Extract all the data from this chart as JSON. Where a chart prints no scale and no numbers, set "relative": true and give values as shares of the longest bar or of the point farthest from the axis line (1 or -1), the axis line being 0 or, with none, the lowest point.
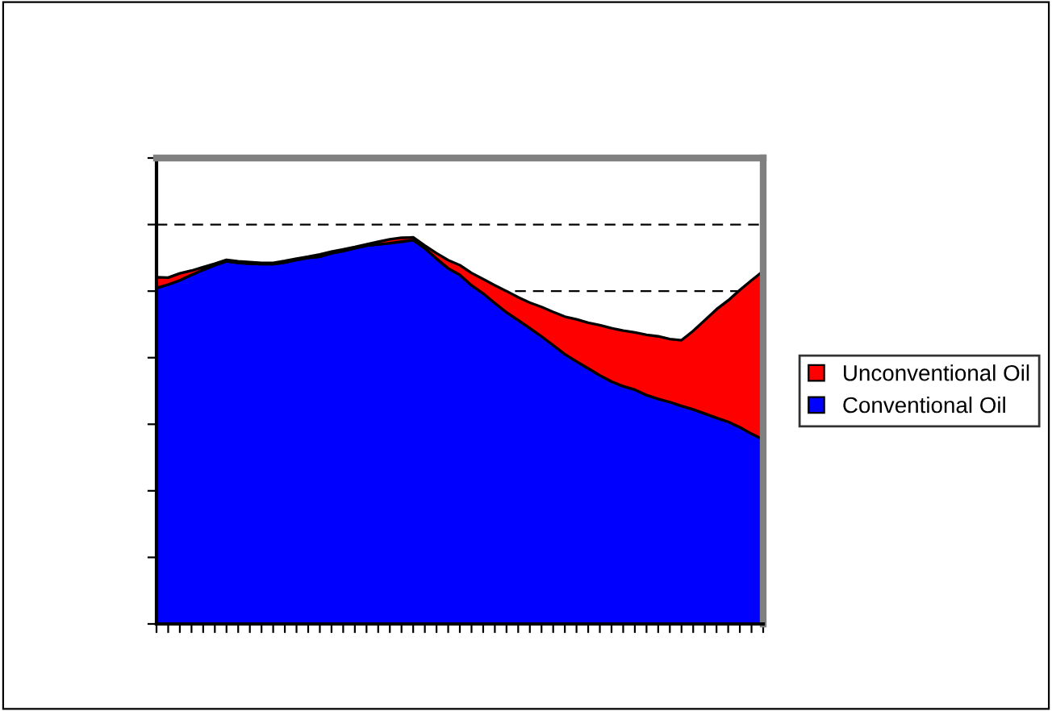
{
  "chart_data": {
    "type": "area",
    "stacked": true,
    "relative": true,
    "categories": [
      null,
      null,
      null,
      null,
      null,
      null,
      null,
      null,
      null,
      null,
      null,
      null,
      null,
      null,
      null,
      null,
      null,
      null,
      null,
      null,
      null,
      null,
      null,
      null,
      null,
      null,
      null,
      null,
      null,
      null,
      null,
      null,
      null,
      null,
      null,
      null,
      null,
      null,
      null,
      null,
      null,
      null,
      null,
      null,
      null,
      null,
      null,
      null,
      null,
      null,
      null,
      null,
      null
    ],
    "series": [
      {
        "name": "Conventional Oil",
        "color": "#0000ff",
        "values": [
          0.869,
          0.878,
          0.889,
          0.903,
          0.916,
          0.928,
          0.938,
          0.934,
          0.932,
          0.931,
          0.931,
          0.935,
          0.942,
          0.947,
          0.95,
          0.959,
          0.965,
          0.972,
          0.979,
          0.982,
          0.985,
          0.989,
          0.993,
          0.972,
          0.945,
          0.92,
          0.903,
          0.876,
          0.855,
          0.83,
          0.806,
          0.786,
          0.765,
          0.744,
          0.721,
          0.698,
          0.679,
          0.661,
          0.643,
          0.627,
          0.615,
          0.606,
          0.592,
          0.582,
          0.574,
          0.564,
          0.555,
          0.544,
          0.533,
          0.523,
          0.509,
          0.492,
          0.477
        ]
      },
      {
        "name": "Unconventional Oil",
        "color": "#ff0000",
        "values": [
          0.028,
          0.018,
          0.018,
          0.011,
          0.007,
          0.004,
          0.004,
          0.004,
          0.004,
          0.003,
          0.003,
          0.004,
          0.003,
          0.003,
          0.006,
          0.004,
          0.004,
          0.003,
          0.003,
          0.007,
          0.01,
          0.01,
          0.007,
          0.007,
          0.014,
          0.021,
          0.025,
          0.032,
          0.037,
          0.046,
          0.055,
          0.059,
          0.066,
          0.076,
          0.086,
          0.097,
          0.109,
          0.118,
          0.13,
          0.138,
          0.144,
          0.148,
          0.156,
          0.162,
          0.163,
          0.17,
          0.203,
          0.242,
          0.281,
          0.314,
          0.355,
          0.397,
          0.436
        ]
      }
    ],
    "ref_lines": [
      {
        "axis": "y",
        "value": 1.033,
        "line_style": "dashed",
        "color": "#000000"
      },
      {
        "axis": "y",
        "value": 0.861,
        "line_style": "dashed",
        "color": "#000000"
      }
    ],
    "legend": "right"
  }
}
